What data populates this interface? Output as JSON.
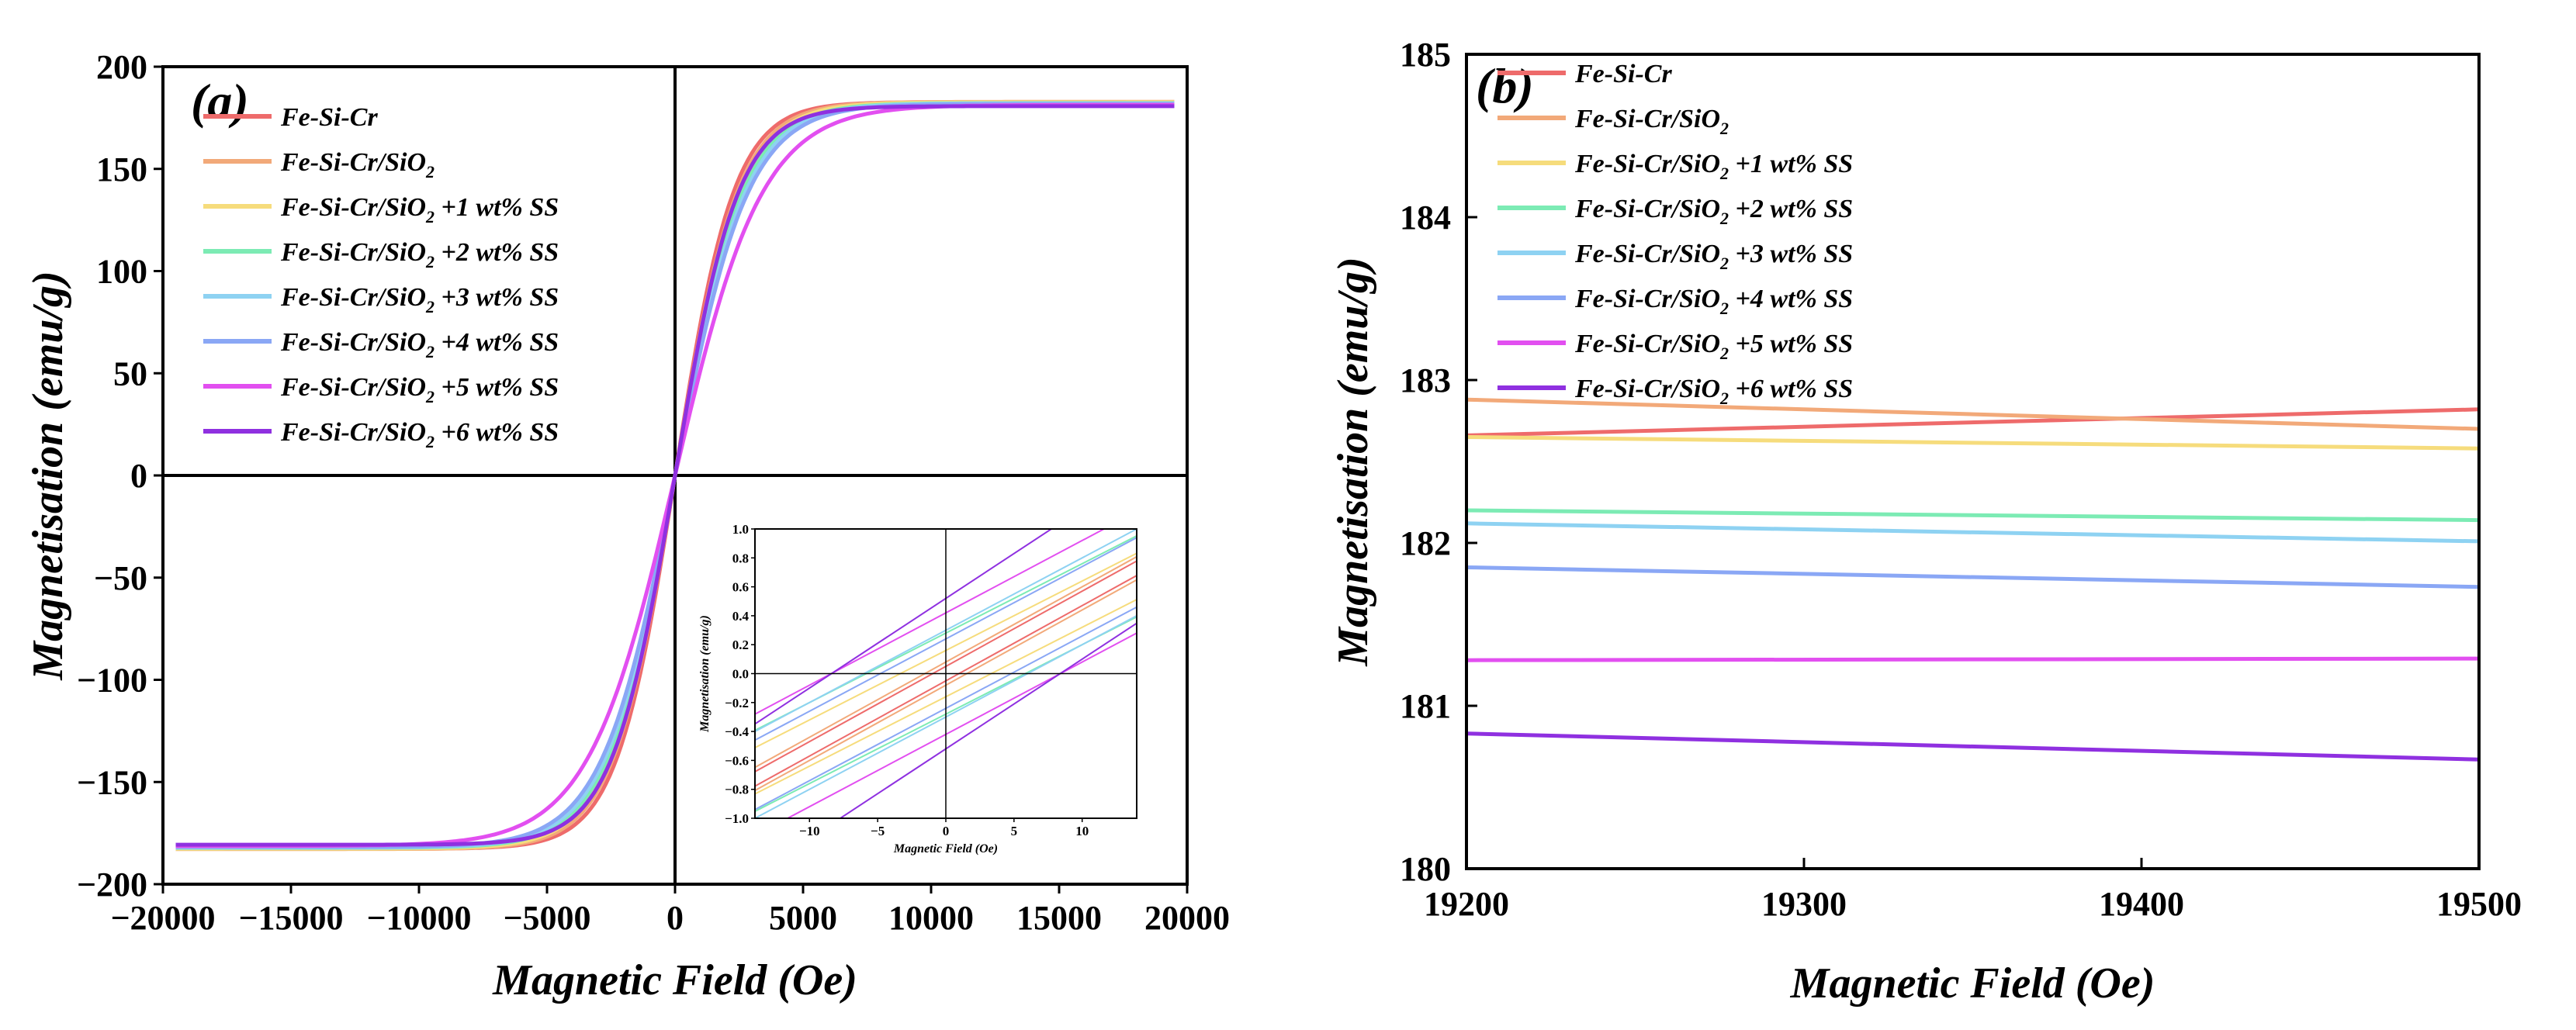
{
  "colors": {
    "Fe-Si-Cr": "#ee6b6b",
    "Fe-Si-Cr/SiO2": "#f2a979",
    "ss1": "#f6dc7c",
    "ss2": "#7cebb4",
    "ss3": "#8ed2f2",
    "ss4": "#8aa7f5",
    "ss5": "#e24ff0",
    "ss6": "#8f30e0"
  },
  "legend": [
    {
      "key": "Fe-Si-Cr",
      "main": "Fe-Si-Cr",
      "sub": "",
      "rest": ""
    },
    {
      "key": "Fe-Si-Cr/SiO2",
      "main": "Fe-Si-Cr/SiO",
      "sub": "2",
      "rest": ""
    },
    {
      "key": "ss1",
      "main": "Fe-Si-Cr/SiO",
      "sub": "2",
      "rest": " +1 wt% SS"
    },
    {
      "key": "ss2",
      "main": "Fe-Si-Cr/SiO",
      "sub": "2",
      "rest": " +2 wt% SS"
    },
    {
      "key": "ss3",
      "main": "Fe-Si-Cr/SiO",
      "sub": "2",
      "rest": " +3 wt% SS"
    },
    {
      "key": "ss4",
      "main": "Fe-Si-Cr/SiO",
      "sub": "2",
      "rest": " +4 wt% SS"
    },
    {
      "key": "ss5",
      "main": "Fe-Si-Cr/SiO",
      "sub": "2",
      "rest": " +5 wt% SS"
    },
    {
      "key": "ss6",
      "main": "Fe-Si-Cr/SiO",
      "sub": "2",
      "rest": " +6 wt% SS"
    }
  ],
  "chart_data": [
    {
      "type": "line",
      "panel": "(a)",
      "xlabel": "Magnetic Field (Oe)",
      "ylabel": "Magnetisation (emu/g)",
      "xlim": [
        -20000,
        20000
      ],
      "ylim": [
        -200,
        200
      ],
      "xticks": [
        -20000,
        -15000,
        -10000,
        -5000,
        0,
        5000,
        10000,
        15000,
        20000
      ],
      "yticks": [
        -200,
        -150,
        -100,
        -50,
        0,
        50,
        100,
        150,
        200
      ],
      "x_range": [
        -19500,
        19500
      ],
      "series": [
        {
          "key": "Fe-Si-Cr",
          "Ms": 182.7,
          "Hs": 2300
        },
        {
          "key": "Fe-Si-Cr/SiO2",
          "Ms": 182.8,
          "Hs": 2450
        },
        {
          "key": "ss1",
          "Ms": 182.6,
          "Hs": 2550
        },
        {
          "key": "ss2",
          "Ms": 182.2,
          "Hs": 2650
        },
        {
          "key": "ss3",
          "Ms": 182.1,
          "Hs": 2750
        },
        {
          "key": "ss4",
          "Ms": 181.8,
          "Hs": 2850
        },
        {
          "key": "ss5",
          "Ms": 181.3,
          "Hs": 3400
        },
        {
          "key": "ss6",
          "Ms": 180.7,
          "Hs": 2450
        }
      ],
      "inset": {
        "xlabel": "Magnetic Field (Oe)",
        "ylabel": "Magnetisation (emu/g)",
        "xlim": [
          -14,
          14
        ],
        "ylim": [
          -1.0,
          1.0
        ],
        "xticks": [
          -10,
          -5,
          0,
          5,
          10
        ],
        "yticks": [
          -1.0,
          -0.8,
          -0.6,
          -0.4,
          -0.2,
          0.0,
          0.2,
          0.4,
          0.6,
          0.8,
          1.0
        ],
        "loops": [
          {
            "key": "Fe-Si-Cr",
            "Mr": 0.05,
            "slope": 0.052
          },
          {
            "key": "Fe-Si-Cr/SiO2",
            "Mr": 0.08,
            "slope": 0.052
          },
          {
            "key": "ss1",
            "Mr": 0.16,
            "slope": 0.048
          },
          {
            "key": "ss2",
            "Mr": 0.28,
            "slope": 0.048
          },
          {
            "key": "ss3",
            "Mr": 0.3,
            "slope": 0.05
          },
          {
            "key": "ss4",
            "Mr": 0.24,
            "slope": 0.05
          },
          {
            "key": "ss5",
            "Mr": 0.42,
            "slope": 0.05
          },
          {
            "key": "ss6",
            "Mr": 0.52,
            "slope": 0.062
          }
        ]
      }
    },
    {
      "type": "line",
      "panel": "(b)",
      "xlabel": "Magnetic Field (Oe)",
      "ylabel": "Magnetisation (emu/g)",
      "xlim": [
        19200,
        19500
      ],
      "ylim": [
        180,
        185
      ],
      "xticks": [
        19200,
        19300,
        19400,
        19500
      ],
      "yticks": [
        180,
        181,
        182,
        183,
        184,
        185
      ],
      "series": [
        {
          "key": "Fe-Si-Cr",
          "x": [
            19200,
            19500
          ],
          "y": [
            182.66,
            182.82
          ]
        },
        {
          "key": "Fe-Si-Cr/SiO2",
          "x": [
            19200,
            19500
          ],
          "y": [
            182.88,
            182.7
          ]
        },
        {
          "key": "ss1",
          "x": [
            19200,
            19500
          ],
          "y": [
            182.65,
            182.58
          ]
        },
        {
          "key": "ss2",
          "x": [
            19200,
            19500
          ],
          "y": [
            182.2,
            182.14
          ]
        },
        {
          "key": "ss3",
          "x": [
            19200,
            19500
          ],
          "y": [
            182.12,
            182.01
          ]
        },
        {
          "key": "ss4",
          "x": [
            19200,
            19500
          ],
          "y": [
            181.85,
            181.73
          ]
        },
        {
          "key": "ss5",
          "x": [
            19200,
            19500
          ],
          "y": [
            181.28,
            181.29
          ]
        },
        {
          "key": "ss6",
          "x": [
            19200,
            19500
          ],
          "y": [
            180.83,
            180.67
          ]
        }
      ]
    }
  ]
}
